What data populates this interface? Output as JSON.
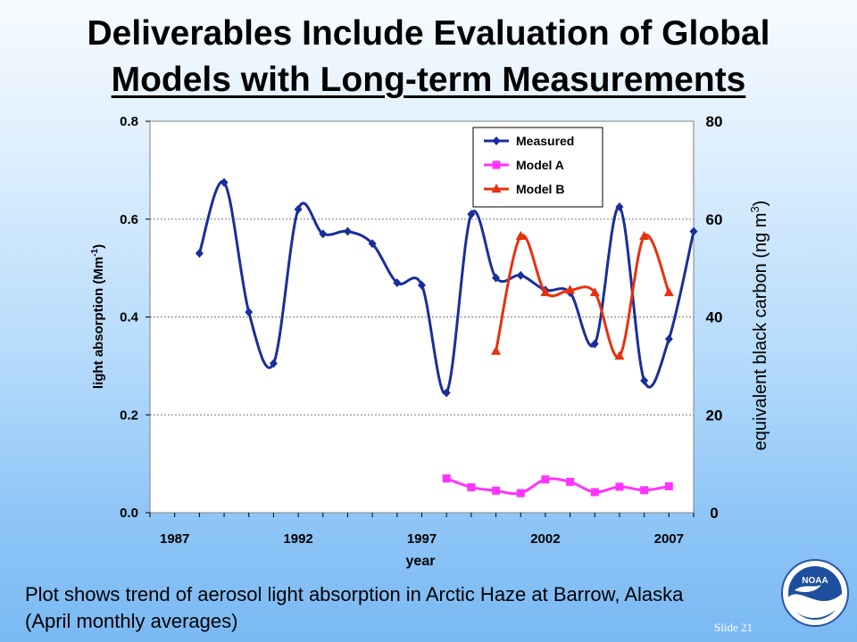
{
  "slide": {
    "title_line1": "Deliverables Include Evaluation of Global",
    "title_line2": "Models with Long-term Measurements",
    "caption_line1": "Plot shows trend of aerosol light absorption in Arctic Haze at Barrow, Alaska",
    "caption_line2": "(April monthly averages)",
    "footer": "Slide  21",
    "logo_text": "NOAA"
  },
  "chart_data": {
    "type": "line",
    "title": "",
    "xlabel": "year",
    "ylabel": "light absorption (Mm",
    "ylabel_sup": "-1",
    "ylabel_end": ")",
    "y2label": "equivalent black carbon (ng m",
    "y2label_sup": "3",
    "y2label_end": ")",
    "xlim": [
      1986,
      2008
    ],
    "ylim": [
      0,
      0.8
    ],
    "y2lim": [
      0,
      80
    ],
    "xticks": [
      1987,
      1992,
      1997,
      2002,
      2007
    ],
    "yticks": [
      0.0,
      0.2,
      0.4,
      0.6,
      0.8
    ],
    "ytick_labels": [
      "0.0",
      "0.2",
      "0.4",
      "0.6",
      "0.8"
    ],
    "y2ticks": [
      0,
      20,
      40,
      60,
      80
    ],
    "grid": true,
    "legend": "top-right",
    "series": [
      {
        "name": "Measured",
        "color": "#1a2e9c",
        "marker": "diamond",
        "x": [
          1988,
          1989,
          1990,
          1991,
          1992,
          1993,
          1994,
          1995,
          1996,
          1997,
          1998,
          1999,
          2000,
          2001,
          2002,
          2003,
          2004,
          2005,
          2006,
          2007,
          2008
        ],
        "y": [
          0.53,
          0.675,
          0.41,
          0.305,
          0.62,
          0.57,
          0.575,
          0.55,
          0.47,
          0.465,
          0.245,
          0.61,
          0.48,
          0.485,
          0.455,
          0.45,
          0.345,
          0.625,
          0.27,
          0.355,
          0.575
        ]
      },
      {
        "name": "Model A",
        "color": "#ff33ff",
        "marker": "square",
        "x": [
          1998,
          1999,
          2000,
          2001,
          2002,
          2003,
          2004,
          2005,
          2006,
          2007
        ],
        "y": [
          0.07,
          0.052,
          0.045,
          0.04,
          0.068,
          0.063,
          0.042,
          0.053,
          0.046,
          0.054
        ]
      },
      {
        "name": "Model B",
        "color": "#e83010",
        "marker": "triangle",
        "x": [
          2000,
          2001,
          2002,
          2003,
          2004,
          2005,
          2006,
          2007
        ],
        "y": [
          0.33,
          0.565,
          0.45,
          0.455,
          0.45,
          0.32,
          0.565,
          0.45
        ]
      }
    ]
  }
}
